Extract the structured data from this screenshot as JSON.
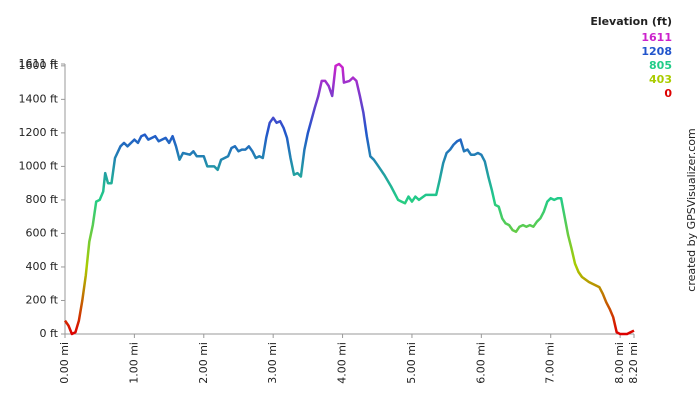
{
  "chart_data": {
    "type": "line",
    "x": [
      0,
      0.05,
      0.1,
      0.15,
      0.2,
      0.25,
      0.3,
      0.35,
      0.4,
      0.45,
      0.5,
      0.55,
      0.58,
      0.62,
      0.67,
      0.72,
      0.8,
      0.85,
      0.9,
      1.0,
      1.05,
      1.1,
      1.15,
      1.2,
      1.3,
      1.35,
      1.45,
      1.5,
      1.55,
      1.6,
      1.65,
      1.7,
      1.8,
      1.85,
      1.9,
      2.0,
      2.05,
      2.15,
      2.2,
      2.25,
      2.35,
      2.4,
      2.45,
      2.5,
      2.55,
      2.6,
      2.65,
      2.7,
      2.75,
      2.8,
      2.85,
      2.9,
      2.95,
      3.0,
      3.05,
      3.1,
      3.15,
      3.2,
      3.25,
      3.3,
      3.35,
      3.4,
      3.45,
      3.5,
      3.6,
      3.65,
      3.7,
      3.75,
      3.8,
      3.85,
      3.9,
      3.95,
      4.0,
      4.02,
      4.1,
      4.15,
      4.2,
      4.25,
      4.3,
      4.35,
      4.4,
      4.45,
      4.5,
      4.6,
      4.7,
      4.8,
      4.85,
      4.9,
      4.95,
      5.0,
      5.05,
      5.1,
      5.2,
      5.3,
      5.35,
      5.4,
      5.45,
      5.5,
      5.55,
      5.6,
      5.65,
      5.7,
      5.75,
      5.8,
      5.85,
      5.9,
      5.95,
      6.0,
      6.05,
      6.1,
      6.15,
      6.2,
      6.25,
      6.3,
      6.35,
      6.4,
      6.45,
      6.5,
      6.55,
      6.6,
      6.65,
      6.7,
      6.75,
      6.8,
      6.85,
      6.9,
      6.95,
      7.0,
      7.05,
      7.1,
      7.15,
      7.2,
      7.25,
      7.3,
      7.35,
      7.4,
      7.45,
      7.55,
      7.6,
      7.7,
      7.75,
      7.8,
      7.85,
      7.9,
      7.95,
      8.0,
      8.1,
      8.15,
      8.2
    ],
    "values": [
      80,
      50,
      0,
      10,
      80,
      200,
      350,
      550,
      650,
      790,
      800,
      850,
      960,
      900,
      900,
      1050,
      1120,
      1140,
      1120,
      1160,
      1140,
      1180,
      1190,
      1160,
      1180,
      1150,
      1170,
      1140,
      1180,
      1120,
      1040,
      1080,
      1070,
      1090,
      1060,
      1060,
      1000,
      1000,
      980,
      1040,
      1060,
      1110,
      1120,
      1090,
      1100,
      1100,
      1120,
      1090,
      1050,
      1060,
      1050,
      1170,
      1260,
      1290,
      1260,
      1270,
      1230,
      1170,
      1050,
      950,
      960,
      940,
      1100,
      1200,
      1350,
      1420,
      1510,
      1510,
      1480,
      1420,
      1600,
      1611,
      1590,
      1500,
      1510,
      1530,
      1510,
      1420,
      1320,
      1180,
      1060,
      1040,
      1010,
      950,
      880,
      800,
      790,
      780,
      820,
      790,
      820,
      800,
      830,
      830,
      830,
      920,
      1020,
      1080,
      1100,
      1130,
      1150,
      1160,
      1090,
      1100,
      1070,
      1070,
      1080,
      1070,
      1030,
      940,
      860,
      770,
      760,
      690,
      660,
      650,
      620,
      610,
      640,
      650,
      640,
      650,
      640,
      670,
      690,
      730,
      790,
      810,
      800,
      810,
      810,
      700,
      590,
      510,
      420,
      370,
      340,
      310,
      300,
      280,
      240,
      190,
      150,
      100,
      10,
      0,
      0,
      10,
      20
    ],
    "xlim": [
      0,
      8.2
    ],
    "ylim": [
      0,
      1611
    ],
    "xticks": [
      {
        "value": 0,
        "label": "0.00 mi"
      },
      {
        "value": 1,
        "label": "1.00 mi"
      },
      {
        "value": 2,
        "label": "2.00 mi"
      },
      {
        "value": 3,
        "label": "3.00 mi"
      },
      {
        "value": 4,
        "label": "4.00 mi"
      },
      {
        "value": 5,
        "label": "5.00 mi"
      },
      {
        "value": 6,
        "label": "6.00 mi"
      },
      {
        "value": 7,
        "label": "7.00 mi"
      },
      {
        "value": 8,
        "label": "8.00 mi"
      },
      {
        "value": 8.2,
        "label": "8.20 mi"
      }
    ],
    "yticks": [
      {
        "value": 0,
        "label": "0 ft"
      },
      {
        "value": 200,
        "label": "200 ft"
      },
      {
        "value": 400,
        "label": "400 ft"
      },
      {
        "value": 600,
        "label": "600 ft"
      },
      {
        "value": 800,
        "label": "800 ft"
      },
      {
        "value": 1000,
        "label": "1000 ft"
      },
      {
        "value": 1200,
        "label": "1200 ft"
      },
      {
        "value": 1400,
        "label": "1400 ft"
      },
      {
        "value": 1600,
        "label": "1600 ft"
      },
      {
        "value": 1611,
        "label": "1611 ft"
      }
    ],
    "legend": {
      "title": "Elevation (ft)",
      "values": [
        1611,
        1208,
        805,
        403,
        0
      ],
      "colors": [
        "#cc22cc",
        "#2255cc",
        "#22cc88",
        "#aacc00",
        "#dd0000"
      ]
    },
    "credit": "created by GPSVisualizer.com"
  }
}
